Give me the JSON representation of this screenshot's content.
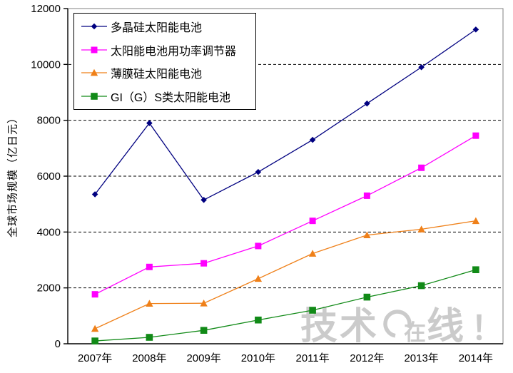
{
  "chart_data": {
    "type": "line",
    "title": "",
    "xlabel": "",
    "ylabel": "全球市场规模（亿日元）",
    "ylim": [
      0,
      12000
    ],
    "ytick_interval": 2000,
    "yticks": [
      0,
      2000,
      4000,
      6000,
      8000,
      10000,
      12000
    ],
    "categories": [
      "2007年",
      "2008年",
      "2009年",
      "2010年",
      "2011年",
      "2012年",
      "2013年",
      "2014年"
    ],
    "grid": "horizontal-dashed-black",
    "legend_position": "top-left-inside",
    "plot_bg": "#ffffff",
    "axis_color": "#000000",
    "frame_color": "#808080",
    "series": [
      {
        "name": "多晶硅太阳能电池",
        "marker": "diamond",
        "color": "#000080",
        "values": [
          5350,
          7900,
          5150,
          6150,
          7300,
          8600,
          9900,
          11250
        ]
      },
      {
        "name": "太阳能电池用功率调节器",
        "marker": "square",
        "color": "#FF00FF",
        "values": [
          1770,
          2750,
          2880,
          3500,
          4400,
          5300,
          6300,
          7450
        ]
      },
      {
        "name": "薄膜硅太阳能电池",
        "marker": "triangle",
        "color": "#EF8019",
        "values": [
          540,
          1440,
          1450,
          2330,
          3230,
          3890,
          4100,
          4400
        ]
      },
      {
        "name": "GI（G）S类太阳能电池",
        "marker": "square",
        "color": "#118A17",
        "values": [
          100,
          230,
          480,
          850,
          1200,
          1670,
          2080,
          2650
        ]
      }
    ]
  },
  "watermark": {
    "t1": "技术",
    "t2": "在",
    "t3": "线",
    "t4": "！",
    "color": "#cbcbcb"
  }
}
